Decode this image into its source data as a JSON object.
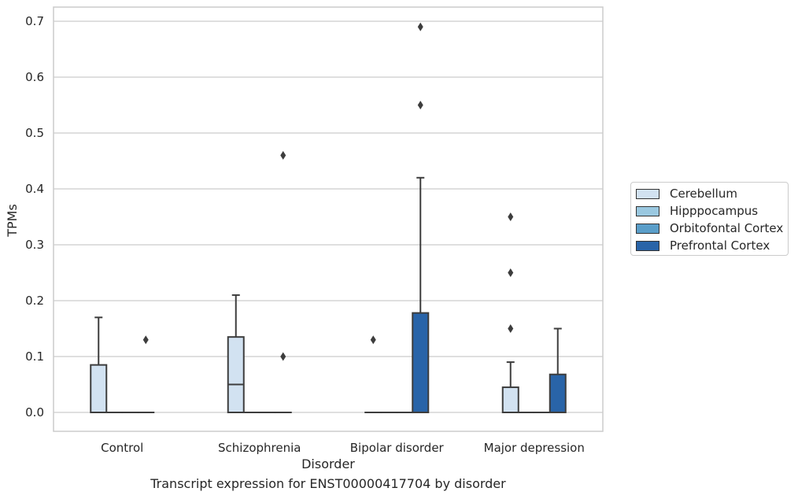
{
  "chart_data": {
    "type": "box",
    "xlabel": "Disorder",
    "ylabel": "TPMs",
    "categories": [
      "Control",
      "Schizophrenia",
      "Bipolar disorder",
      "Major depression"
    ],
    "yticks": [
      "0.0",
      "0.1",
      "0.2",
      "0.3",
      "0.4",
      "0.5",
      "0.6",
      "0.7"
    ],
    "ylim": [
      -0.035,
      0.725
    ],
    "grid": "horizontal",
    "legend_position": "right",
    "series": [
      {
        "name": "Cerebellum",
        "color": "#d2e2f1",
        "boxes": [
          {
            "q1": 0.0,
            "median": 0.0,
            "q3": 0.085,
            "whisker_low": 0.0,
            "whisker_high": 0.17,
            "outliers": []
          },
          {
            "q1": 0.0,
            "median": 0.05,
            "q3": 0.135,
            "whisker_low": 0.0,
            "whisker_high": 0.21,
            "outliers": []
          },
          {
            "q1": 0.0,
            "median": 0.0,
            "q3": 0.0,
            "whisker_low": 0.0,
            "whisker_high": 0.0,
            "outliers": [
              0.13
            ]
          },
          {
            "q1": 0.0,
            "median": 0.0,
            "q3": 0.045,
            "whisker_low": 0.0,
            "whisker_high": 0.09,
            "outliers": [
              0.15,
              0.25,
              0.35
            ]
          }
        ]
      },
      {
        "name": "Hipppocampus",
        "color": "#9ac8e0",
        "boxes": [
          {
            "q1": 0.0,
            "median": 0.0,
            "q3": 0.0,
            "whisker_low": 0.0,
            "whisker_high": 0.0,
            "outliers": []
          },
          {
            "q1": 0.0,
            "median": 0.0,
            "q3": 0.0,
            "whisker_low": 0.0,
            "whisker_high": 0.0,
            "outliers": []
          },
          {
            "q1": 0.0,
            "median": 0.0,
            "q3": 0.0,
            "whisker_low": 0.0,
            "whisker_high": 0.0,
            "outliers": []
          },
          {
            "q1": 0.0,
            "median": 0.0,
            "q3": 0.0,
            "whisker_low": 0.0,
            "whisker_high": 0.0,
            "outliers": []
          }
        ]
      },
      {
        "name": "Orbitofontal Cortex",
        "color": "#5a9ec9",
        "boxes": [
          {
            "q1": 0.0,
            "median": 0.0,
            "q3": 0.0,
            "whisker_low": 0.0,
            "whisker_high": 0.0,
            "outliers": []
          },
          {
            "q1": 0.0,
            "median": 0.0,
            "q3": 0.0,
            "whisker_low": 0.0,
            "whisker_high": 0.0,
            "outliers": []
          },
          {
            "q1": 0.0,
            "median": 0.0,
            "q3": 0.0,
            "whisker_low": 0.0,
            "whisker_high": 0.0,
            "outliers": []
          },
          {
            "q1": 0.0,
            "median": 0.0,
            "q3": 0.0,
            "whisker_low": 0.0,
            "whisker_high": 0.0,
            "outliers": []
          }
        ]
      },
      {
        "name": "Prefrontal Cortex",
        "color": "#2964a8",
        "boxes": [
          {
            "q1": 0.0,
            "median": 0.0,
            "q3": 0.0,
            "whisker_low": 0.0,
            "whisker_high": 0.0,
            "outliers": [
              0.13
            ]
          },
          {
            "q1": 0.0,
            "median": 0.0,
            "q3": 0.0,
            "whisker_low": 0.0,
            "whisker_high": 0.0,
            "outliers": [
              0.46,
              0.1
            ]
          },
          {
            "q1": 0.0,
            "median": 0.0,
            "q3": 0.178,
            "whisker_low": 0.0,
            "whisker_high": 0.42,
            "outliers": [
              0.55,
              0.69
            ]
          },
          {
            "q1": 0.0,
            "median": 0.0,
            "q3": 0.068,
            "whisker_low": 0.0,
            "whisker_high": 0.15,
            "outliers": []
          }
        ]
      }
    ]
  },
  "caption": "Transcript expression for ENST00000417704 by disorder"
}
